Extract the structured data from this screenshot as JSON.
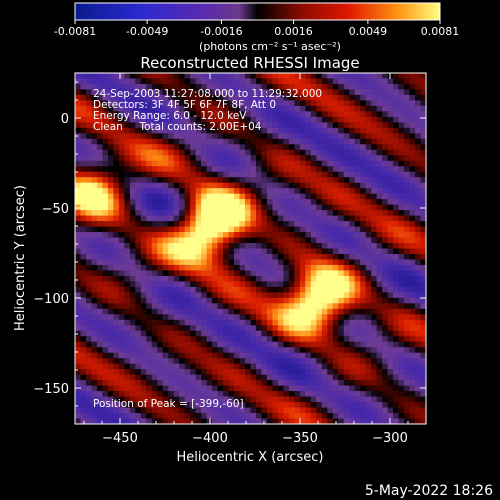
{
  "chart_data": {
    "type": "heatmap",
    "title": "Reconstructed RHESSI Image",
    "xlabel": "Heliocentric X (arcsec)",
    "ylabel": "Heliocentric Y (arcsec)",
    "x_ticks": [
      "-450",
      "-400",
      "-350",
      "-300"
    ],
    "y_ticks": [
      "0",
      "-50",
      "-100",
      "-150"
    ],
    "colorbar": {
      "ticks": [
        "-0.0081",
        "-0.0049",
        "-0.0016",
        "0.0016",
        "0.0049",
        "0.0081"
      ],
      "unit_label": "(photons cm⁻² s⁻¹ asec⁻²)",
      "range": [
        -0.0081,
        0.0081
      ]
    },
    "xlim": [
      -475,
      -280
    ],
    "ylim": [
      -170,
      25
    ],
    "annotations": [
      "24-Sep-2003 11:27:08.000 to 11:29:32.000",
      "Detectors: 3F 4F 5F 6F 7F 8F, Att 0",
      "Energy Range: 6.0 - 12.0 keV",
      "Clean     Total counts: 2.00E+04"
    ],
    "peak_label": "Position of Peak = [-399,-60]",
    "peaks": [
      {
        "x": -399,
        "y": -60,
        "value": 0.0081
      },
      {
        "x": -340,
        "y": -100,
        "value": 0.0068
      },
      {
        "x": -465,
        "y": -40,
        "value": 0.0045
      }
    ]
  },
  "footer": {
    "date": "5-May-2022 18:26"
  },
  "colors": {
    "background": "#000000",
    "text": "#ffffff"
  }
}
